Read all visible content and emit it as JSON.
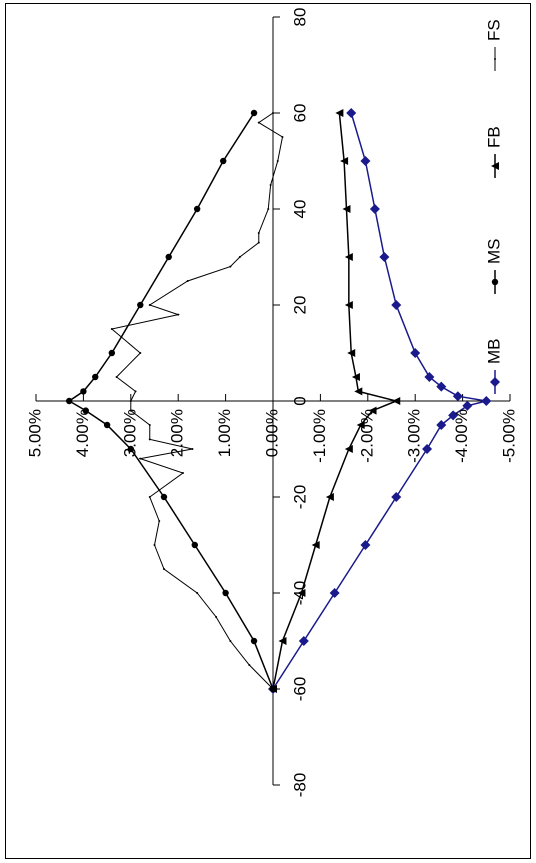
{
  "chart_data": {
    "type": "line",
    "orientation": "rotated 90° counter-clockwise",
    "title": "",
    "xlabel": "",
    "ylabel": "",
    "xlim": [
      -80,
      80
    ],
    "ylim": [
      -5,
      5
    ],
    "x_ticks": [
      "-80",
      "-60",
      "-40",
      "-20",
      "0",
      "20",
      "40",
      "60",
      "80"
    ],
    "y_ticks": [
      "5.00%",
      "4.00%",
      "3.00%",
      "2.00%",
      "1.00%",
      "0.00%",
      "-1.00%",
      "-2.00%",
      "-3.00%",
      "-4.00%",
      "-5.00%"
    ],
    "y_unit": "%",
    "grid": false,
    "legend": "left",
    "series": [
      {
        "name": "MB",
        "marker": "diamond",
        "color": "#1a1a8c",
        "x": [
          -60,
          -50,
          -40,
          -30,
          -20,
          -10,
          -5,
          -3,
          -1,
          0,
          1,
          3,
          5,
          10,
          20,
          30,
          40,
          50,
          60
        ],
        "y": [
          0.0,
          -0.65,
          -1.3,
          -1.95,
          -2.6,
          -3.25,
          -3.55,
          -3.8,
          -4.1,
          -4.5,
          -3.9,
          -3.55,
          -3.3,
          -3.0,
          -2.6,
          -2.35,
          -2.15,
          -1.95,
          -1.65
        ]
      },
      {
        "name": "MS",
        "marker": "circle",
        "color": "#000000",
        "x": [
          -60,
          -50,
          -40,
          -30,
          -20,
          -10,
          -5,
          -2,
          0,
          2,
          5,
          10,
          20,
          30,
          40,
          50,
          60
        ],
        "y": [
          0.0,
          0.4,
          1.0,
          1.65,
          2.3,
          3.0,
          3.5,
          3.95,
          4.3,
          4.0,
          3.75,
          3.4,
          2.8,
          2.2,
          1.6,
          1.05,
          0.4
        ]
      },
      {
        "name": "FB",
        "marker": "triangle",
        "color": "#000000",
        "x": [
          -60,
          -50,
          -40,
          -30,
          -20,
          -10,
          -5,
          -2,
          0,
          2,
          5,
          10,
          20,
          30,
          40,
          50,
          60
        ],
        "y": [
          0.0,
          -0.2,
          -0.6,
          -0.9,
          -1.2,
          -1.6,
          -1.85,
          -2.1,
          -2.6,
          -1.8,
          -1.75,
          -1.65,
          -1.6,
          -1.6,
          -1.55,
          -1.5,
          -1.4
        ]
      },
      {
        "name": "FS",
        "marker": "dot",
        "color": "#000000",
        "x": [
          -60,
          -55,
          -50,
          -45,
          -40,
          -35,
          -30,
          -25,
          -20,
          -15,
          -12,
          -10,
          -8,
          -5,
          -2,
          0,
          2,
          5,
          10,
          15,
          18,
          20,
          25,
          28,
          30,
          33,
          35,
          40,
          45,
          50,
          55,
          58,
          60
        ],
        "y": [
          0.0,
          0.5,
          0.9,
          1.2,
          1.6,
          2.3,
          2.5,
          2.4,
          2.6,
          1.9,
          2.8,
          1.7,
          2.6,
          2.6,
          3.0,
          3.0,
          2.9,
          3.3,
          2.8,
          3.4,
          2.0,
          2.6,
          1.8,
          0.9,
          0.7,
          0.3,
          0.3,
          0.1,
          0.05,
          -0.1,
          -0.2,
          0.3,
          0.0
        ]
      }
    ]
  }
}
